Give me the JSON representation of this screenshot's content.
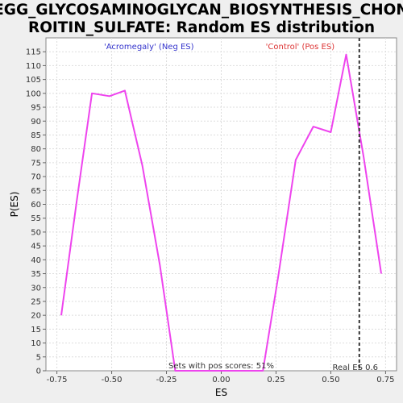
{
  "chart_data": {
    "type": "line",
    "title_lines": [
      "KEGG_GLYCOSAMINOGLYCAN_BIOSYNTHESIS_CHOND",
      "ROITIN_SULFATE: Random ES distribution"
    ],
    "xlabel": "ES",
    "ylabel": "P(ES)",
    "xlim": [
      -0.8,
      0.8
    ],
    "ylim": [
      0,
      120
    ],
    "xticks": [
      -0.75,
      -0.5,
      -0.25,
      0.0,
      0.25,
      0.5,
      0.75
    ],
    "xtick_labels": [
      "-0.75",
      "-0.50",
      "-0.25",
      "0.00",
      "0.25",
      "0.50",
      "0.75"
    ],
    "yticks": [
      0,
      5,
      10,
      15,
      20,
      25,
      30,
      35,
      40,
      45,
      50,
      55,
      60,
      65,
      70,
      75,
      80,
      85,
      90,
      95,
      100,
      105,
      110,
      115
    ],
    "grid": true,
    "series": [
      {
        "color": "#ee44ee",
        "x": [
          -0.73,
          -0.66,
          -0.59,
          -0.51,
          -0.44,
          -0.36,
          -0.28,
          -0.21,
          -0.13,
          -0.05,
          0.03,
          0.11,
          0.19,
          0.26,
          0.34,
          0.42,
          0.5,
          0.57,
          0.65,
          0.73
        ],
        "y": [
          20,
          61,
          100,
          99,
          101,
          74,
          38,
          0,
          0,
          0,
          0,
          0,
          0,
          34,
          76,
          88,
          86,
          114,
          77,
          35
        ]
      }
    ],
    "annotations": {
      "neg_label": "'Acromegaly' (Neg ES)",
      "neg_color": "#3333cc",
      "pos_label": "'Control' (Pos ES)",
      "pos_color": "#dd3333",
      "sets_label": "Sets with pos scores: 51%",
      "real_es_label": "Real ES 0.6",
      "real_es_value": 0.63
    }
  }
}
